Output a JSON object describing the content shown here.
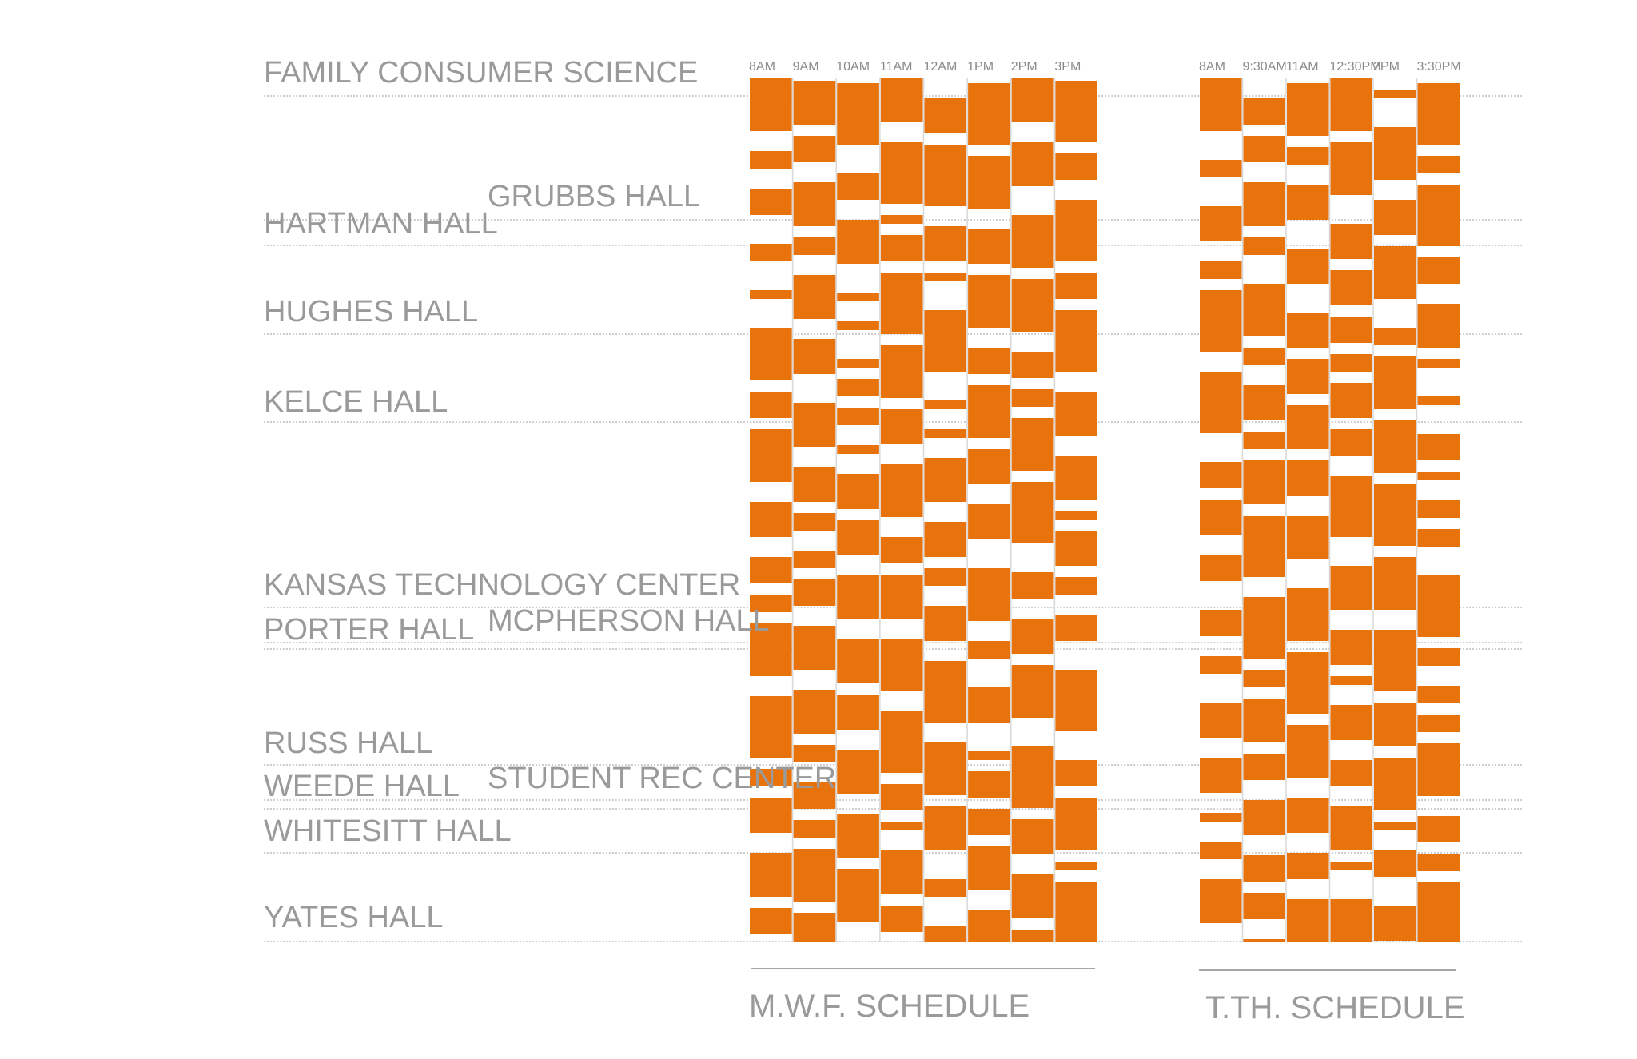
{
  "chart_data": {
    "type": "heatmap",
    "accent_color": "#E8720C",
    "buildings": [
      {
        "name": "FAMILY CONSUMER SCIENCE",
        "indent": 0
      },
      {
        "name": "GRUBBS HALL",
        "indent": 1
      },
      {
        "name": "HARTMAN HALL",
        "indent": 0
      },
      {
        "name": "HUGHES HALL",
        "indent": 0
      },
      {
        "name": "KELCE HALL",
        "indent": 0
      },
      {
        "name": "KANSAS TECHNOLOGY CENTER",
        "indent": 0
      },
      {
        "name": "MCPHERSON HALL",
        "indent": 1
      },
      {
        "name": "PORTER HALL",
        "indent": 0
      },
      {
        "name": "RUSS HALL",
        "indent": 0
      },
      {
        "name": "STUDENT REC CENTER",
        "indent": 1
      },
      {
        "name": "WEEDE HALL",
        "indent": 0
      },
      {
        "name": "WHITESITT HALL",
        "indent": 0
      },
      {
        "name": "YATES HALL",
        "indent": 0
      }
    ],
    "schedules": [
      {
        "name": "M.W.F. SCHEDULE",
        "times": [
          "8AM",
          "9AM",
          "10AM",
          "11AM",
          "12AM",
          "1PM",
          "2PM",
          "3PM"
        ]
      },
      {
        "name": "T.TH. SCHEDULE",
        "times": [
          "8AM",
          "9:30AM",
          "11AM",
          "12:30PM",
          "2PM",
          "3:30PM"
        ]
      }
    ]
  }
}
